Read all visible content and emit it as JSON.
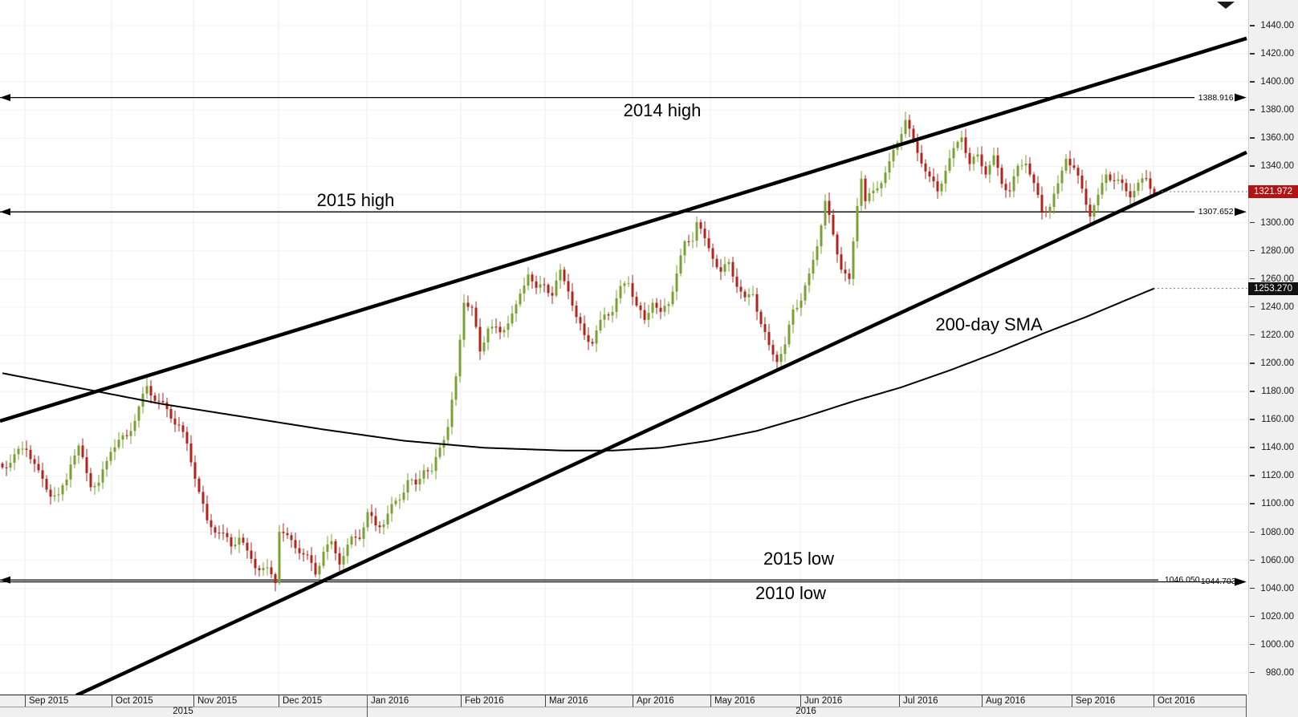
{
  "chart_data": {
    "type": "candlestick",
    "title": "",
    "x_months": [
      {
        "label": "Sep 2015",
        "i": 5.6
      },
      {
        "label": "Oct 2015",
        "i": 27.2
      },
      {
        "label": "Nov 2015",
        "i": 47.6
      },
      {
        "label": "Dec 2015",
        "i": 68.8
      },
      {
        "label": "Jan 2016",
        "i": 90.8
      },
      {
        "label": "Feb 2016",
        "i": 114.2
      },
      {
        "label": "Mar 2016",
        "i": 135.2
      },
      {
        "label": "Apr 2016",
        "i": 157.0
      },
      {
        "label": "May 2016",
        "i": 176.4
      },
      {
        "label": "Jun 2016",
        "i": 198.8
      },
      {
        "label": "Jul 2016",
        "i": 223.4
      },
      {
        "label": "Aug 2016",
        "i": 244.0
      },
      {
        "label": "Sep 2016",
        "i": 266.4
      },
      {
        "label": "Oct 2016",
        "i": 286.8
      }
    ],
    "years": [
      {
        "label": "2015",
        "center_i": 45.0
      },
      {
        "label": "2016",
        "center_i": 200.2
      }
    ],
    "year_divider_i": 90.8,
    "y_axis": {
      "min": 980,
      "max": 1440,
      "step": 20,
      "tick_format": "0.00"
    },
    "n_candles": 288,
    "close_anchors": [
      [
        0,
        1126
      ],
      [
        3,
        1134
      ],
      [
        6,
        1141
      ],
      [
        9,
        1121
      ],
      [
        12,
        1108
      ],
      [
        14,
        1104
      ],
      [
        16,
        1119
      ],
      [
        17,
        1131
      ],
      [
        19,
        1139
      ],
      [
        22,
        1115
      ],
      [
        24,
        1113
      ],
      [
        27,
        1140
      ],
      [
        31,
        1148
      ],
      [
        34,
        1168
      ],
      [
        36,
        1183
      ],
      [
        38,
        1176
      ],
      [
        41,
        1166
      ],
      [
        44,
        1156
      ],
      [
        46,
        1141
      ],
      [
        48,
        1121
      ],
      [
        51,
        1086
      ],
      [
        54,
        1081
      ],
      [
        57,
        1070
      ],
      [
        59,
        1078
      ],
      [
        61,
        1064
      ],
      [
        63,
        1057
      ],
      [
        66,
        1052
      ],
      [
        68,
        1046
      ],
      [
        69,
        1083
      ],
      [
        71,
        1075
      ],
      [
        74,
        1068
      ],
      [
        76,
        1061
      ],
      [
        78,
        1051
      ],
      [
        80,
        1067
      ],
      [
        82,
        1071
      ],
      [
        84,
        1060
      ],
      [
        87,
        1074
      ],
      [
        89,
        1078
      ],
      [
        91,
        1093
      ],
      [
        93,
        1084
      ],
      [
        95,
        1088
      ],
      [
        97,
        1097
      ],
      [
        99,
        1105
      ],
      [
        101,
        1117
      ],
      [
        103,
        1112
      ],
      [
        105,
        1127
      ],
      [
        107,
        1121
      ],
      [
        109,
        1141
      ],
      [
        111,
        1156
      ],
      [
        113,
        1188
      ],
      [
        115,
        1246
      ],
      [
        117,
        1238
      ],
      [
        119,
        1208
      ],
      [
        121,
        1227
      ],
      [
        124,
        1221
      ],
      [
        126,
        1231
      ],
      [
        128,
        1239
      ],
      [
        131,
        1266
      ],
      [
        133,
        1251
      ],
      [
        135,
        1257
      ],
      [
        137,
        1249
      ],
      [
        139,
        1264
      ],
      [
        141,
        1254
      ],
      [
        143,
        1231
      ],
      [
        145,
        1220
      ],
      [
        147,
        1216
      ],
      [
        150,
        1234
      ],
      [
        152,
        1239
      ],
      [
        154,
        1252
      ],
      [
        156,
        1259
      ],
      [
        158,
        1241
      ],
      [
        160,
        1229
      ],
      [
        162,
        1246
      ],
      [
        164,
        1234
      ],
      [
        166,
        1243
      ],
      [
        168,
        1265
      ],
      [
        170,
        1284
      ],
      [
        172,
        1290
      ],
      [
        173,
        1302
      ],
      [
        175,
        1286
      ],
      [
        177,
        1277
      ],
      [
        179,
        1264
      ],
      [
        181,
        1271
      ],
      [
        183,
        1257
      ],
      [
        185,
        1244
      ],
      [
        187,
        1251
      ],
      [
        189,
        1228
      ],
      [
        191,
        1211
      ],
      [
        193,
        1204
      ],
      [
        195,
        1211
      ],
      [
        197,
        1239
      ],
      [
        199,
        1246
      ],
      [
        201,
        1261
      ],
      [
        203,
        1286
      ],
      [
        205,
        1314
      ],
      [
        207,
        1291
      ],
      [
        209,
        1269
      ],
      [
        211,
        1257
      ],
      [
        213,
        1314
      ],
      [
        214,
        1334
      ],
      [
        215,
        1315
      ],
      [
        217,
        1321
      ],
      [
        219,
        1331
      ],
      [
        221,
        1341
      ],
      [
        223,
        1358
      ],
      [
        225,
        1374
      ],
      [
        227,
        1355
      ],
      [
        229,
        1345
      ],
      [
        231,
        1331
      ],
      [
        233,
        1322
      ],
      [
        235,
        1339
      ],
      [
        237,
        1350
      ],
      [
        239,
        1363
      ],
      [
        241,
        1341
      ],
      [
        243,
        1347
      ],
      [
        245,
        1337
      ],
      [
        247,
        1345
      ],
      [
        249,
        1329
      ],
      [
        251,
        1323
      ],
      [
        253,
        1338
      ],
      [
        255,
        1345
      ],
      [
        257,
        1326
      ],
      [
        259,
        1308
      ],
      [
        261,
        1313
      ],
      [
        263,
        1325
      ],
      [
        265,
        1348
      ],
      [
        267,
        1338
      ],
      [
        269,
        1323
      ],
      [
        271,
        1307
      ],
      [
        273,
        1317
      ],
      [
        275,
        1336
      ],
      [
        277,
        1330
      ],
      [
        279,
        1326
      ],
      [
        281,
        1321
      ],
      [
        283,
        1326
      ],
      [
        285,
        1332
      ],
      [
        287,
        1322
      ]
    ],
    "candle_volatility": {
      "close_jitter": 3,
      "wick": 6
    },
    "sma_label": "200-day SMA",
    "sma_anchors": [
      [
        0,
        1193
      ],
      [
        20,
        1182
      ],
      [
        40,
        1171
      ],
      [
        60,
        1162
      ],
      [
        80,
        1153
      ],
      [
        100,
        1145
      ],
      [
        120,
        1140
      ],
      [
        140,
        1138
      ],
      [
        152,
        1138
      ],
      [
        164,
        1140
      ],
      [
        176,
        1145
      ],
      [
        188,
        1152
      ],
      [
        200,
        1162
      ],
      [
        212,
        1173
      ],
      [
        224,
        1183
      ],
      [
        236,
        1195
      ],
      [
        248,
        1208
      ],
      [
        260,
        1222
      ],
      [
        270,
        1233
      ],
      [
        280,
        1245
      ],
      [
        287,
        1253.27
      ]
    ],
    "trendlines": [
      {
        "name": "upper-channel-line",
        "i1": -0.6,
        "p1": 1159,
        "i2": 310,
        "p2": 1431
      },
      {
        "name": "lower-channel-line",
        "i1": 18.4,
        "p1": 964,
        "i2": 310,
        "p2": 1350
      }
    ],
    "levels": [
      {
        "price": 1388.916,
        "label": "1388.916",
        "line_end_f": 0.957,
        "label_x_f": 0.96,
        "left_arrow": true,
        "right_arrow": true
      },
      {
        "price": 1307.652,
        "label": "1307.652",
        "line_end_f": 0.957,
        "label_x_f": 0.96,
        "left_arrow": true,
        "right_arrow": true
      },
      {
        "price": 1046.05,
        "label": "1046.050",
        "line_end_f": 0.928,
        "label_x_f": 0.933,
        "left_arrow": true,
        "right_arrow": false
      },
      {
        "price": 1044.703,
        "label": "1044.703",
        "line_end_f": 0.988,
        "label_x_f": 0.962,
        "left_arrow": false,
        "right_arrow": true
      }
    ],
    "annotations": [
      {
        "text": "2014 high",
        "i": 164.4,
        "price": 1379.6
      },
      {
        "text": "2015 high",
        "i": 88.0,
        "price": 1315.7
      },
      {
        "text": "200-day SMA",
        "i": 245.8,
        "price": 1227.4
      },
      {
        "text": "2015 low",
        "i": 198.4,
        "price": 1060.9
      },
      {
        "text": "2010 low",
        "i": 196.4,
        "price": 1036.4
      }
    ],
    "price_badges": [
      {
        "value": "1321.972",
        "price": 1321.972,
        "bg": "#b31312",
        "fg": "#ffffff"
      },
      {
        "value": "1253.270",
        "price": 1253.27,
        "bg": "#111111",
        "fg": "#ffffff"
      }
    ],
    "dotted_lines": [
      {
        "from_i": 287.8,
        "price": 1321.972
      },
      {
        "from_i": 286.8,
        "price": 1253.27
      }
    ],
    "colors": {
      "bull": "#79a233",
      "bear": "#b2241c",
      "trend_line": "#000000",
      "sma_line": "#000000",
      "level_line": "#000000",
      "grid_vertical": "#ececec",
      "grid_horizontal": "#f3f3f3",
      "axis_background": "#f0f0f0",
      "axis_text": "#1a1a1a"
    },
    "legend_position": "none",
    "grid": true
  }
}
